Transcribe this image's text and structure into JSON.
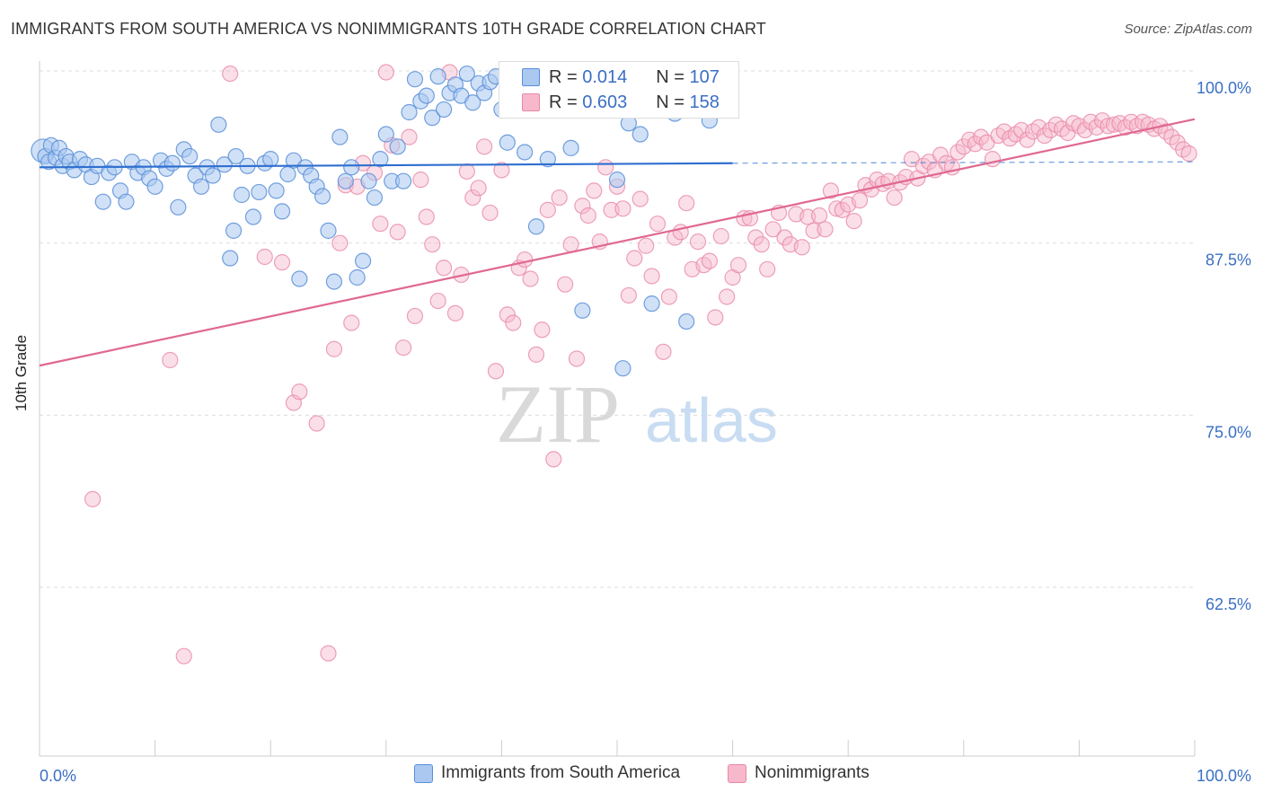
{
  "title": "IMMIGRANTS FROM SOUTH AMERICA VS NONIMMIGRANTS 10TH GRADE CORRELATION CHART",
  "source": "Source: ZipAtlas.com",
  "watermark": {
    "zip": "ZIP",
    "atlas": "atlas"
  },
  "legend_stats": {
    "r_label": "R =",
    "n_label": "N =",
    "rows": [
      {
        "r": "0.014",
        "n": "107"
      },
      {
        "r": "0.603",
        "n": "158"
      }
    ]
  },
  "bottom_legend": [
    {
      "label": "Immigrants from South America"
    },
    {
      "label": "Nonimmigrants"
    }
  ],
  "colors": {
    "blue_fill": "#aac8f0",
    "blue_stroke": "#5b8fd8",
    "blue_line": "#2f6fd0",
    "pink_fill": "#f7b8cc",
    "pink_stroke": "#e889a8",
    "pink_line": "#e06890",
    "tick_label": "#3a6fc4",
    "grid": "#dddddd"
  },
  "chart_data": {
    "type": "scatter",
    "title": "IMMIGRANTS FROM SOUTH AMERICA VS NONIMMIGRANTS 10TH GRADE CORRELATION CHART",
    "xlabel": "",
    "ylabel": "10th Grade",
    "xlim": [
      0,
      100
    ],
    "ylim": [
      50.0,
      100.0
    ],
    "x_tick_labels": [
      "0.0%",
      "100.0%"
    ],
    "y_ticks": [
      {
        "value": 100.0,
        "label": "100.0%"
      },
      {
        "value": 87.5,
        "label": "87.5%"
      },
      {
        "value": 75.0,
        "label": "75.0%"
      },
      {
        "value": 62.5,
        "label": "62.5%"
      }
    ],
    "grid": true,
    "legend_position": "top-center",
    "series": [
      {
        "name": "Immigrants from South America",
        "color": "blue",
        "trend": {
          "x0": 0,
          "y0": 93.0,
          "x1": 60,
          "y1": 93.3,
          "dashed_to_x": 100,
          "dashed_to_y": 93.4
        },
        "points": [
          [
            0.3,
            94.2
          ],
          [
            0.5,
            93.8
          ],
          [
            0.8,
            93.4
          ],
          [
            1.0,
            94.6
          ],
          [
            1.4,
            93.7
          ],
          [
            1.7,
            94.4
          ],
          [
            2.0,
            93.1
          ],
          [
            2.3,
            93.8
          ],
          [
            2.6,
            93.4
          ],
          [
            3.0,
            92.8
          ],
          [
            3.5,
            93.6
          ],
          [
            4.0,
            93.2
          ],
          [
            4.5,
            92.3
          ],
          [
            5.0,
            93.1
          ],
          [
            5.5,
            90.5
          ],
          [
            6.0,
            92.6
          ],
          [
            6.5,
            93.0
          ],
          [
            7.0,
            91.3
          ],
          [
            7.5,
            90.5
          ],
          [
            8.0,
            93.4
          ],
          [
            8.5,
            92.6
          ],
          [
            9.0,
            93.0
          ],
          [
            9.5,
            92.2
          ],
          [
            10.0,
            91.6
          ],
          [
            10.5,
            93.5
          ],
          [
            11.0,
            92.9
          ],
          [
            11.5,
            93.3
          ],
          [
            12.0,
            90.1
          ],
          [
            12.5,
            94.3
          ],
          [
            13.0,
            93.8
          ],
          [
            13.5,
            92.4
          ],
          [
            14.0,
            91.6
          ],
          [
            14.5,
            93.0
          ],
          [
            15.0,
            92.4
          ],
          [
            15.5,
            96.1
          ],
          [
            16.0,
            93.2
          ],
          [
            16.5,
            86.4
          ],
          [
            16.8,
            88.4
          ],
          [
            17.0,
            93.8
          ],
          [
            17.5,
            91.0
          ],
          [
            18.0,
            93.1
          ],
          [
            18.5,
            89.4
          ],
          [
            19.0,
            91.2
          ],
          [
            19.5,
            93.3
          ],
          [
            20.0,
            93.6
          ],
          [
            20.5,
            91.3
          ],
          [
            21.0,
            89.8
          ],
          [
            21.5,
            92.5
          ],
          [
            22.0,
            93.5
          ],
          [
            22.5,
            84.9
          ],
          [
            23.0,
            93.0
          ],
          [
            23.5,
            92.4
          ],
          [
            24.0,
            91.6
          ],
          [
            24.5,
            90.9
          ],
          [
            25.0,
            88.4
          ],
          [
            25.5,
            84.7
          ],
          [
            26.0,
            95.2
          ],
          [
            26.5,
            92.0
          ],
          [
            27.0,
            93.0
          ],
          [
            27.5,
            85.0
          ],
          [
            28.0,
            86.2
          ],
          [
            28.5,
            92.0
          ],
          [
            29.0,
            90.8
          ],
          [
            29.5,
            93.6
          ],
          [
            30.0,
            95.4
          ],
          [
            30.5,
            92.0
          ],
          [
            31.0,
            94.5
          ],
          [
            31.5,
            92.0
          ],
          [
            32.0,
            97.0
          ],
          [
            32.5,
            99.4
          ],
          [
            33.0,
            97.8
          ],
          [
            33.5,
            98.2
          ],
          [
            34.0,
            96.6
          ],
          [
            34.5,
            99.6
          ],
          [
            35.0,
            97.2
          ],
          [
            35.5,
            98.4
          ],
          [
            36.0,
            99.0
          ],
          [
            36.5,
            98.2
          ],
          [
            37.0,
            99.8
          ],
          [
            37.5,
            97.7
          ],
          [
            38.0,
            99.1
          ],
          [
            38.5,
            98.4
          ],
          [
            39.0,
            99.2
          ],
          [
            39.5,
            99.6
          ],
          [
            40.0,
            97.2
          ],
          [
            40.5,
            94.8
          ],
          [
            41.0,
            98.8
          ],
          [
            41.5,
            99.2
          ],
          [
            42.0,
            94.1
          ],
          [
            42.5,
            99.4
          ],
          [
            43.0,
            88.7
          ],
          [
            44.0,
            93.6
          ],
          [
            45.0,
            98.9
          ],
          [
            46.0,
            94.4
          ],
          [
            47.0,
            82.6
          ],
          [
            48.0,
            97.6
          ],
          [
            49.0,
            99.7
          ],
          [
            50.0,
            92.1
          ],
          [
            50.5,
            78.4
          ],
          [
            51.0,
            96.2
          ],
          [
            52.0,
            95.4
          ],
          [
            53.0,
            83.1
          ],
          [
            54.0,
            99.4
          ],
          [
            55.0,
            96.9
          ],
          [
            56.0,
            81.8
          ],
          [
            57.0,
            97.3
          ],
          [
            58.0,
            96.4
          ]
        ]
      },
      {
        "name": "Nonimmigrants",
        "color": "pink",
        "trend": {
          "x0": 0,
          "y0": 78.6,
          "x1": 100,
          "y1": 96.5
        },
        "points": [
          [
            4.6,
            68.9
          ],
          [
            11.3,
            79.0
          ],
          [
            12.5,
            57.5
          ],
          [
            16.5,
            99.8
          ],
          [
            19.5,
            86.5
          ],
          [
            21.0,
            86.1
          ],
          [
            22.0,
            75.9
          ],
          [
            22.5,
            76.7
          ],
          [
            24.0,
            74.4
          ],
          [
            25.0,
            57.7
          ],
          [
            25.5,
            79.8
          ],
          [
            26.0,
            87.5
          ],
          [
            26.5,
            91.7
          ],
          [
            27.0,
            81.7
          ],
          [
            27.5,
            91.6
          ],
          [
            28.0,
            93.3
          ],
          [
            29.0,
            92.6
          ],
          [
            29.5,
            88.9
          ],
          [
            30.0,
            99.9
          ],
          [
            30.5,
            94.6
          ],
          [
            31.0,
            88.3
          ],
          [
            31.5,
            79.9
          ],
          [
            32.0,
            95.2
          ],
          [
            32.5,
            82.2
          ],
          [
            33.0,
            92.1
          ],
          [
            33.5,
            89.4
          ],
          [
            34.0,
            87.4
          ],
          [
            34.5,
            83.3
          ],
          [
            35.0,
            85.7
          ],
          [
            35.5,
            99.9
          ],
          [
            36.0,
            82.4
          ],
          [
            36.5,
            85.2
          ],
          [
            37.0,
            92.7
          ],
          [
            37.5,
            90.8
          ],
          [
            38.0,
            91.5
          ],
          [
            38.5,
            94.5
          ],
          [
            39.0,
            89.7
          ],
          [
            39.5,
            78.2
          ],
          [
            40.0,
            92.8
          ],
          [
            40.5,
            82.3
          ],
          [
            41.0,
            81.7
          ],
          [
            41.5,
            85.7
          ],
          [
            42.0,
            86.3
          ],
          [
            42.5,
            84.9
          ],
          [
            43.0,
            79.4
          ],
          [
            43.5,
            81.2
          ],
          [
            44.0,
            89.9
          ],
          [
            44.5,
            71.8
          ],
          [
            45.0,
            90.8
          ],
          [
            45.5,
            84.5
          ],
          [
            46.0,
            87.4
          ],
          [
            46.5,
            79.1
          ],
          [
            47.0,
            90.2
          ],
          [
            47.5,
            89.5
          ],
          [
            48.0,
            91.3
          ],
          [
            48.5,
            87.6
          ],
          [
            49.0,
            93.0
          ],
          [
            49.5,
            89.9
          ],
          [
            50.0,
            91.6
          ],
          [
            50.5,
            90.0
          ],
          [
            51.0,
            83.7
          ],
          [
            51.5,
            86.4
          ],
          [
            52.0,
            90.7
          ],
          [
            52.5,
            87.3
          ],
          [
            53.0,
            85.1
          ],
          [
            53.5,
            88.9
          ],
          [
            54.0,
            79.6
          ],
          [
            54.5,
            83.6
          ],
          [
            55.0,
            87.9
          ],
          [
            55.5,
            88.3
          ],
          [
            56.0,
            90.4
          ],
          [
            56.5,
            85.6
          ],
          [
            57.0,
            87.6
          ],
          [
            57.5,
            85.9
          ],
          [
            58.0,
            86.2
          ],
          [
            58.5,
            82.1
          ],
          [
            59.0,
            88.0
          ],
          [
            59.5,
            83.6
          ],
          [
            60.0,
            85.0
          ],
          [
            60.5,
            85.9
          ],
          [
            61.0,
            89.3
          ],
          [
            61.5,
            89.3
          ],
          [
            62.0,
            87.9
          ],
          [
            62.5,
            87.4
          ],
          [
            63.0,
            85.6
          ],
          [
            63.5,
            88.5
          ],
          [
            64.0,
            89.7
          ],
          [
            64.5,
            87.9
          ],
          [
            65.0,
            87.4
          ],
          [
            65.5,
            89.6
          ],
          [
            66.0,
            87.2
          ],
          [
            66.5,
            89.4
          ],
          [
            67.0,
            88.4
          ],
          [
            67.5,
            89.5
          ],
          [
            68.0,
            88.5
          ],
          [
            68.5,
            91.3
          ],
          [
            69.0,
            90.0
          ],
          [
            69.5,
            89.9
          ],
          [
            70.0,
            90.3
          ],
          [
            70.5,
            89.1
          ],
          [
            71.0,
            90.6
          ],
          [
            71.5,
            91.7
          ],
          [
            72.0,
            91.4
          ],
          [
            72.5,
            92.1
          ],
          [
            73.0,
            91.8
          ],
          [
            73.5,
            92.0
          ],
          [
            74.0,
            90.8
          ],
          [
            74.5,
            91.9
          ],
          [
            75.0,
            92.3
          ],
          [
            75.5,
            93.6
          ],
          [
            76.0,
            92.2
          ],
          [
            76.5,
            93.1
          ],
          [
            77.0,
            93.4
          ],
          [
            77.5,
            92.8
          ],
          [
            78.0,
            93.9
          ],
          [
            78.5,
            93.3
          ],
          [
            79.0,
            93.0
          ],
          [
            79.5,
            94.1
          ],
          [
            80.0,
            94.5
          ],
          [
            80.5,
            95.0
          ],
          [
            81.0,
            94.7
          ],
          [
            81.5,
            95.2
          ],
          [
            82.0,
            94.8
          ],
          [
            82.5,
            93.6
          ],
          [
            83.0,
            95.3
          ],
          [
            83.5,
            95.6
          ],
          [
            84.0,
            95.1
          ],
          [
            84.5,
            95.4
          ],
          [
            85.0,
            95.7
          ],
          [
            85.5,
            95.0
          ],
          [
            86.0,
            95.6
          ],
          [
            86.5,
            95.9
          ],
          [
            87.0,
            95.3
          ],
          [
            87.5,
            95.7
          ],
          [
            88.0,
            96.1
          ],
          [
            88.5,
            95.8
          ],
          [
            89.0,
            95.5
          ],
          [
            89.5,
            96.2
          ],
          [
            90.0,
            96.0
          ],
          [
            90.5,
            95.7
          ],
          [
            91.0,
            96.3
          ],
          [
            91.5,
            95.9
          ],
          [
            92.0,
            96.4
          ],
          [
            92.5,
            96.0
          ],
          [
            93.0,
            96.1
          ],
          [
            93.5,
            96.2
          ],
          [
            94.0,
            95.9
          ],
          [
            94.5,
            96.3
          ],
          [
            95.0,
            96.0
          ],
          [
            95.5,
            96.3
          ],
          [
            96.0,
            96.1
          ],
          [
            96.5,
            95.8
          ],
          [
            97.0,
            96.0
          ],
          [
            97.5,
            95.6
          ],
          [
            98.0,
            95.2
          ],
          [
            98.5,
            94.8
          ],
          [
            99.0,
            94.3
          ],
          [
            99.5,
            94.0
          ]
        ]
      }
    ]
  }
}
